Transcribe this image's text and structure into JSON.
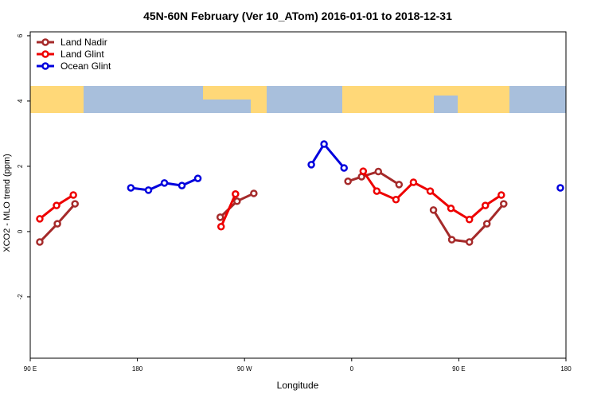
{
  "chart_data": {
    "type": "line",
    "title": "45N-60N February (Ver 10_ATom)   2016-01-01 to 2018-12-31",
    "x_label": "Longitude",
    "y_label": "XCO2 - MLO trend (ppm)",
    "xlim": [
      90,
      540
    ],
    "ylim": [
      -3.88,
      6.12
    ],
    "xticks": [
      {
        "value": 90,
        "label": "90 E"
      },
      {
        "value": 180,
        "label": "180"
      },
      {
        "value": 270,
        "label": "90 W"
      },
      {
        "value": 360,
        "label": "0"
      },
      {
        "value": 450,
        "label": "90 E"
      },
      {
        "value": 540,
        "label": "180"
      }
    ],
    "yticks": [
      -2,
      0,
      2,
      4,
      6
    ],
    "legend": "top-left",
    "series": [
      {
        "name": "Land Nadir",
        "color": "#a52a2a",
        "x": [
          98.0,
          112.8,
          127.6,
          null,
          249.6,
          263.7,
          277.8,
          null,
          356.9,
          368.3,
          382.4,
          399.8,
          null,
          428.7,
          444.1,
          458.9,
          473.6,
          487.7
        ],
        "values": [
          -0.32,
          0.24,
          0.85,
          null,
          0.44,
          0.93,
          1.17,
          null,
          1.54,
          1.68,
          1.84,
          1.44,
          null,
          0.66,
          -0.25,
          -0.32,
          0.24,
          0.85
        ]
      },
      {
        "name": "Land Glint",
        "color": "#ee0000",
        "x": [
          98.0,
          112.1,
          126.2,
          null,
          250.3,
          262.4,
          null,
          369.7,
          381.1,
          397.2,
          411.9,
          426.0,
          443.4,
          458.9,
          472.3,
          485.7
        ],
        "values": [
          0.39,
          0.8,
          1.12,
          null,
          0.15,
          1.15,
          null,
          1.85,
          1.24,
          0.98,
          1.51,
          1.24,
          0.71,
          0.37,
          0.8,
          1.12
        ]
      },
      {
        "name": "Ocean Glint",
        "color": "#0000dd",
        "x": [
          174.5,
          189.3,
          202.7,
          217.4,
          230.8,
          null,
          326.1,
          336.8,
          353.6,
          null,
          535.3
        ],
        "values": [
          1.34,
          1.27,
          1.49,
          1.41,
          1.63,
          null,
          2.05,
          2.68,
          1.95,
          null,
          1.34
        ]
      }
    ]
  }
}
